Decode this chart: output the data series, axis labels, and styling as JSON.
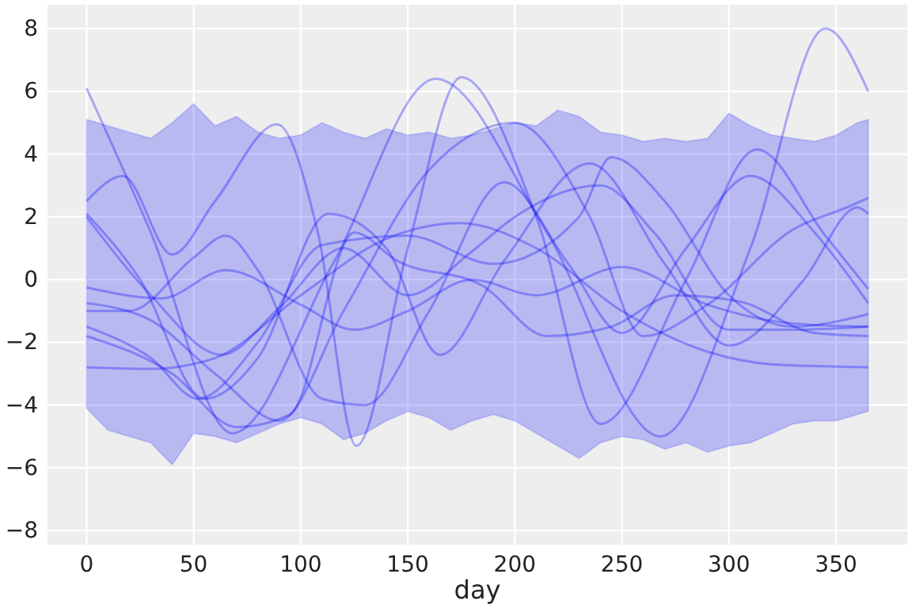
{
  "chart_data": {
    "type": "line",
    "xlabel": "day",
    "xlim": [
      -18.25,
      383.25
    ],
    "ylim": [
      -8.45,
      8.76
    ],
    "xticks": [
      0,
      50,
      100,
      150,
      200,
      250,
      300,
      350
    ],
    "yticks": [
      -8,
      -6,
      -4,
      -2,
      0,
      2,
      4,
      6,
      8
    ],
    "grid": true,
    "marker": "none",
    "line_style": "solid",
    "series": [
      {
        "type": "area",
        "color": "#0000ff",
        "values": [
          null,
          null,
          null,
          null,
          null,
          null,
          null,
          null,
          null,
          null,
          null,
          null,
          null,
          null,
          null,
          null,
          null,
          null,
          null,
          null,
          null,
          null,
          null,
          null,
          null,
          null,
          null,
          null,
          null,
          null,
          null,
          null,
          null,
          null,
          null,
          null,
          null,
          null
        ],
        "x": [
          0,
          10,
          20,
          30,
          40,
          50,
          60,
          70,
          80,
          90,
          100,
          110,
          120,
          130,
          140,
          150,
          160,
          170,
          180,
          190,
          200,
          210,
          220,
          230,
          240,
          250,
          260,
          270,
          280,
          290,
          300,
          310,
          320,
          330,
          340,
          350,
          360,
          365
        ],
        "lower": [
          -4.1,
          -4.8,
          -5.0,
          -5.2,
          -5.9,
          -4.9,
          -5.0,
          -5.2,
          -4.9,
          -4.6,
          -4.4,
          -4.6,
          -5.1,
          -4.9,
          -4.5,
          -4.2,
          -4.4,
          -4.8,
          -4.5,
          -4.3,
          -4.5,
          -4.9,
          -5.3,
          -5.7,
          -5.2,
          -5.0,
          -5.1,
          -5.4,
          -5.2,
          -5.5,
          -5.3,
          -5.2,
          -4.9,
          -4.6,
          -4.5,
          -4.5,
          -4.3,
          -4.2
        ],
        "upper": [
          5.1,
          4.9,
          4.7,
          4.5,
          5.0,
          5.6,
          4.9,
          5.2,
          4.7,
          4.5,
          4.6,
          5.0,
          4.7,
          4.5,
          4.8,
          4.6,
          4.7,
          4.5,
          4.6,
          4.8,
          5.0,
          4.9,
          5.4,
          5.2,
          4.7,
          4.6,
          4.4,
          4.5,
          4.4,
          4.5,
          5.3,
          4.9,
          4.6,
          4.5,
          4.4,
          4.6,
          5.0,
          5.1
        ]
      },
      {
        "color": "#0000ff",
        "x": [
          0,
          30,
          68,
          115,
          163,
          215,
          268,
          310,
          345,
          365
        ],
        "values": [
          6.1,
          1.5,
          -4.9,
          0.5,
          6.4,
          1.5,
          -5.0,
          1,
          8.0,
          6.0
        ]
      },
      {
        "color": "#0000ff",
        "x": [
          0,
          17,
          40,
          60,
          89,
          108,
          126,
          150,
          175,
          210,
          240,
          280,
          313,
          345,
          365
        ],
        "values": [
          2.5,
          3.3,
          0.8,
          2.5,
          4.95,
          1.5,
          -5.3,
          1,
          6.45,
          2,
          -4.6,
          0,
          4.15,
          1.4,
          -0.3
        ]
      },
      {
        "color": "#0000ff",
        "x": [
          0,
          30,
          60,
          100,
          140,
          174,
          210,
          250,
          290,
          320,
          365
        ],
        "values": [
          -2.8,
          -2.85,
          -2.5,
          -0.5,
          1.3,
          1.8,
          1.0,
          -1.0,
          -2.3,
          -2.7,
          -2.8
        ]
      },
      {
        "color": "#0000ff",
        "x": [
          0,
          25,
          55,
          80,
          113,
          140,
          165,
          195,
          235,
          270,
          300,
          335,
          360,
          365
        ],
        "values": [
          2.1,
          0,
          -3.8,
          -2.5,
          2.1,
          1,
          -2.4,
          0.6,
          3.7,
          0.5,
          -2.1,
          0,
          2.3,
          2.1
        ]
      },
      {
        "color": "#0000ff",
        "x": [
          0,
          35,
          65,
          100,
          125,
          150,
          180,
          210,
          250,
          290,
          330,
          365
        ],
        "values": [
          -0.25,
          -0.6,
          0.3,
          -0.8,
          -1.6,
          -1.0,
          0,
          -0.5,
          0.4,
          -0.8,
          -1.4,
          -1.5
        ]
      },
      {
        "color": "#0000ff",
        "x": [
          0,
          30,
          60,
          90,
          120,
          160,
          200,
          235,
          260,
          290,
          330,
          355,
          365
        ],
        "values": [
          -0.75,
          -1.3,
          -3,
          -4.5,
          -1,
          3.5,
          5,
          2,
          -1.8,
          -0.8,
          1.6,
          2.3,
          2.6
        ]
      },
      {
        "color": "#0000ff",
        "x": [
          0,
          20,
          50,
          65,
          80,
          110,
          130,
          160,
          195,
          225,
          250,
          280,
          310,
          340,
          365
        ],
        "values": [
          -1.0,
          -1,
          0.7,
          1.4,
          0.3,
          -3.8,
          -4,
          -1,
          3.1,
          0.5,
          -1.7,
          1,
          3.3,
          1.5,
          -0.75
        ]
      },
      {
        "color": "#0000ff",
        "x": [
          0,
          30,
          52,
          80,
          110,
          150,
          190,
          230,
          245,
          270,
          300,
          330,
          365
        ],
        "values": [
          -1.5,
          -2.5,
          -3.8,
          -2,
          1.1,
          1.4,
          0.5,
          2,
          3.9,
          2.5,
          -0.5,
          -1.5,
          -1.1
        ]
      },
      {
        "color": "#0000ff",
        "x": [
          0,
          40,
          70,
          95,
          125,
          145,
          185,
          215,
          245,
          275,
          305,
          340,
          365
        ],
        "values": [
          -1.8,
          -3,
          -4.7,
          -4.3,
          1.5,
          0.6,
          -0.2,
          -1.8,
          -1.5,
          -0.5,
          -0.7,
          -1.7,
          -1.8
        ]
      },
      {
        "color": "#0000ff",
        "x": [
          0,
          30,
          63,
          90,
          120,
          150,
          180,
          200,
          240,
          265,
          300,
          330,
          365
        ],
        "values": [
          2.0,
          -0.5,
          -2.4,
          -0.9,
          1.0,
          -0.5,
          0.9,
          2.0,
          3.0,
          1.5,
          -1.6,
          -1.6,
          -1.5
        ]
      }
    ]
  }
}
